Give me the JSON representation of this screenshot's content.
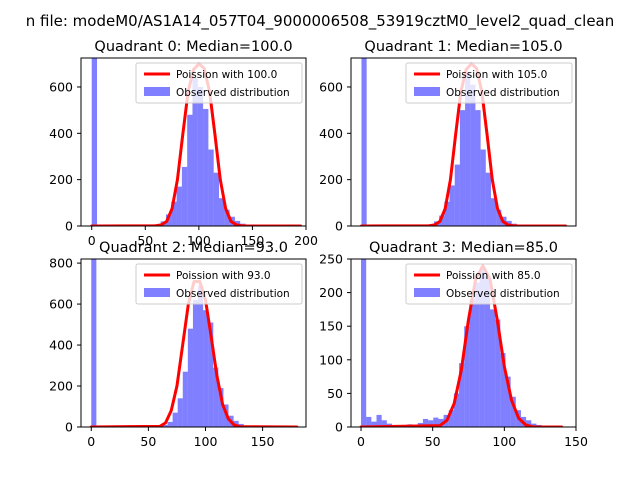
{
  "figure": {
    "suptitle": "n file: modeM0/AS1A14_057T04_9000006508_53919cztM0_level2_quad_clean"
  },
  "colors": {
    "hist": "#0000ff",
    "hist_opacity": 0.5,
    "curve": "#ff0000",
    "axis": "#000000"
  },
  "chart_data": [
    {
      "type": "bar",
      "title": "Quadrant 0: Median=100.0",
      "median": 100.0,
      "xlim": [
        -10,
        200
      ],
      "ylim": [
        0,
        725
      ],
      "xticks": [
        0,
        50,
        100,
        150,
        200
      ],
      "yticks": [
        0,
        200,
        400,
        600
      ],
      "xtick_labels": [
        "0",
        "50",
        "100",
        "150",
        "200"
      ],
      "ytick_labels": [
        "0",
        "200",
        "400",
        "600"
      ],
      "bin_width": 4.95,
      "legend": {
        "curve_label": "Poission with 100.0",
        "hist_label": "Observed distribution",
        "location": "upper right"
      },
      "bins": [
        {
          "x": 0,
          "y": 725
        },
        {
          "x": 59.4,
          "y": 8
        },
        {
          "x": 64.35,
          "y": 20
        },
        {
          "x": 69.3,
          "y": 50
        },
        {
          "x": 74.25,
          "y": 105
        },
        {
          "x": 79.2,
          "y": 170
        },
        {
          "x": 84.15,
          "y": 255
        },
        {
          "x": 89.1,
          "y": 480
        },
        {
          "x": 94.05,
          "y": 640
        },
        {
          "x": 99.0,
          "y": 600
        },
        {
          "x": 103.95,
          "y": 505
        },
        {
          "x": 108.9,
          "y": 330
        },
        {
          "x": 113.85,
          "y": 230
        },
        {
          "x": 118.8,
          "y": 120
        },
        {
          "x": 123.75,
          "y": 70
        },
        {
          "x": 128.7,
          "y": 40
        },
        {
          "x": 133.65,
          "y": 22
        },
        {
          "x": 138.6,
          "y": 10
        },
        {
          "x": 143.55,
          "y": 5
        }
      ],
      "curve": {
        "x": [
          0,
          60,
          65,
          70,
          75,
          80,
          85,
          90,
          95,
          100,
          105,
          110,
          115,
          120,
          125,
          130,
          135,
          140,
          145,
          195
        ],
        "y": [
          0,
          1,
          5,
          20,
          75,
          200,
          395,
          580,
          675,
          700,
          680,
          580,
          395,
          200,
          75,
          20,
          5,
          1,
          0,
          0
        ]
      }
    },
    {
      "type": "bar",
      "title": "Quadrant 1: Median=105.0",
      "median": 105.0,
      "xlim": [
        -10,
        205
      ],
      "ylim": [
        0,
        725
      ],
      "xticks": [],
      "yticks": [
        0,
        200,
        400,
        600
      ],
      "xtick_labels": [],
      "ytick_labels": [
        "0",
        "200",
        "400",
        "600"
      ],
      "bin_width": 4.95,
      "legend": {
        "curve_label": "Poission with 105.0",
        "hist_label": "Observed distribution",
        "location": "upper right"
      },
      "bins": [
        {
          "x": 0,
          "y": 725
        },
        {
          "x": 64.35,
          "y": 8
        },
        {
          "x": 69.3,
          "y": 20
        },
        {
          "x": 74.25,
          "y": 45
        },
        {
          "x": 79.2,
          "y": 105
        },
        {
          "x": 84.15,
          "y": 175
        },
        {
          "x": 89.1,
          "y": 265
        },
        {
          "x": 94.05,
          "y": 500
        },
        {
          "x": 99.0,
          "y": 660
        },
        {
          "x": 103.95,
          "y": 610
        },
        {
          "x": 108.9,
          "y": 500
        },
        {
          "x": 113.85,
          "y": 330
        },
        {
          "x": 118.8,
          "y": 230
        },
        {
          "x": 123.75,
          "y": 120
        },
        {
          "x": 128.7,
          "y": 70
        },
        {
          "x": 133.65,
          "y": 40
        },
        {
          "x": 138.6,
          "y": 22
        },
        {
          "x": 143.55,
          "y": 10
        },
        {
          "x": 148.5,
          "y": 5
        }
      ],
      "curve": {
        "x": [
          0,
          65,
          70,
          75,
          80,
          85,
          90,
          95,
          100,
          105,
          110,
          115,
          120,
          125,
          130,
          135,
          140,
          145,
          150,
          195
        ],
        "y": [
          0,
          1,
          5,
          20,
          75,
          200,
          395,
          580,
          675,
          700,
          680,
          580,
          395,
          200,
          75,
          20,
          5,
          1,
          0,
          0
        ]
      }
    },
    {
      "type": "bar",
      "title": "Quadrant 2: Median=93.0",
      "median": 93.0,
      "xlim": [
        -9,
        188
      ],
      "ylim": [
        0,
        820
      ],
      "xticks": [
        0,
        50,
        100,
        150
      ],
      "yticks": [
        0,
        200,
        400,
        600,
        800
      ],
      "xtick_labels": [
        "0",
        "50",
        "100",
        "150"
      ],
      "ytick_labels": [
        "0",
        "200",
        "400",
        "600",
        "800"
      ],
      "bin_width": 4.45,
      "legend": {
        "curve_label": "Poission with 93.0",
        "hist_label": "Observed distribution",
        "location": "upper right"
      },
      "bins": [
        {
          "x": 0,
          "y": 820
        },
        {
          "x": 62.3,
          "y": 10
        },
        {
          "x": 66.75,
          "y": 25
        },
        {
          "x": 71.2,
          "y": 70
        },
        {
          "x": 75.65,
          "y": 140
        },
        {
          "x": 80.1,
          "y": 270
        },
        {
          "x": 84.55,
          "y": 480
        },
        {
          "x": 89.0,
          "y": 620
        },
        {
          "x": 93.45,
          "y": 690
        },
        {
          "x": 97.9,
          "y": 570
        },
        {
          "x": 102.35,
          "y": 510
        },
        {
          "x": 106.8,
          "y": 290
        },
        {
          "x": 111.25,
          "y": 190
        },
        {
          "x": 115.7,
          "y": 110
        },
        {
          "x": 120.15,
          "y": 55
        },
        {
          "x": 124.6,
          "y": 30
        },
        {
          "x": 129.05,
          "y": 15
        },
        {
          "x": 133.5,
          "y": 5
        }
      ],
      "curve": {
        "x": [
          0,
          60,
          65,
          70,
          75,
          80,
          85,
          90,
          95,
          100,
          105,
          110,
          115,
          120,
          125,
          130,
          180
        ],
        "y": [
          0,
          3,
          20,
          80,
          200,
          400,
          600,
          710,
          710,
          620,
          440,
          250,
          110,
          40,
          10,
          2,
          0
        ]
      }
    },
    {
      "type": "bar",
      "title": "Quadrant 3: Median=85.0",
      "median": 85.0,
      "xlim": [
        -7,
        150
      ],
      "ylim": [
        0,
        250
      ],
      "xticks": [
        0,
        50,
        100,
        150
      ],
      "yticks": [
        0,
        50,
        100,
        150,
        200,
        250
      ],
      "xtick_labels": [
        "0",
        "50",
        "100",
        "150"
      ],
      "ytick_labels": [
        "0",
        "50",
        "100",
        "150",
        "200",
        "250"
      ],
      "bin_width": 3.6,
      "legend": {
        "curve_label": "Poission with 85.0",
        "hist_label": "Observed distribution",
        "location": "upper right"
      },
      "bins": [
        {
          "x": 0,
          "y": 250
        },
        {
          "x": 3.6,
          "y": 15
        },
        {
          "x": 7.2,
          "y": 8
        },
        {
          "x": 10.8,
          "y": 18
        },
        {
          "x": 14.4,
          "y": 10
        },
        {
          "x": 18.0,
          "y": 5
        },
        {
          "x": 21.6,
          "y": 3
        },
        {
          "x": 25.2,
          "y": 2
        },
        {
          "x": 28.8,
          "y": 2
        },
        {
          "x": 32.4,
          "y": 4
        },
        {
          "x": 36.0,
          "y": 3
        },
        {
          "x": 39.6,
          "y": 6
        },
        {
          "x": 43.2,
          "y": 12
        },
        {
          "x": 46.8,
          "y": 10
        },
        {
          "x": 50.4,
          "y": 14
        },
        {
          "x": 54.0,
          "y": 12
        },
        {
          "x": 57.6,
          "y": 18
        },
        {
          "x": 61.2,
          "y": 25
        },
        {
          "x": 64.8,
          "y": 50
        },
        {
          "x": 68.4,
          "y": 95
        },
        {
          "x": 72.0,
          "y": 150
        },
        {
          "x": 75.6,
          "y": 190
        },
        {
          "x": 79.2,
          "y": 215
        },
        {
          "x": 82.8,
          "y": 235
        },
        {
          "x": 86.4,
          "y": 225
        },
        {
          "x": 90.0,
          "y": 175
        },
        {
          "x": 93.6,
          "y": 160
        },
        {
          "x": 97.2,
          "y": 110
        },
        {
          "x": 100.8,
          "y": 75
        },
        {
          "x": 104.4,
          "y": 45
        },
        {
          "x": 108.0,
          "y": 25
        },
        {
          "x": 111.6,
          "y": 15
        },
        {
          "x": 115.2,
          "y": 10
        },
        {
          "x": 118.8,
          "y": 5
        },
        {
          "x": 122.4,
          "y": 3
        }
      ],
      "curve": {
        "x": [
          0,
          55,
          60,
          65,
          70,
          75,
          80,
          85,
          90,
          95,
          100,
          105,
          110,
          115,
          120,
          140
        ],
        "y": [
          0,
          2,
          10,
          35,
          85,
          160,
          220,
          240,
          220,
          160,
          90,
          40,
          13,
          3,
          0,
          0
        ]
      }
    }
  ]
}
